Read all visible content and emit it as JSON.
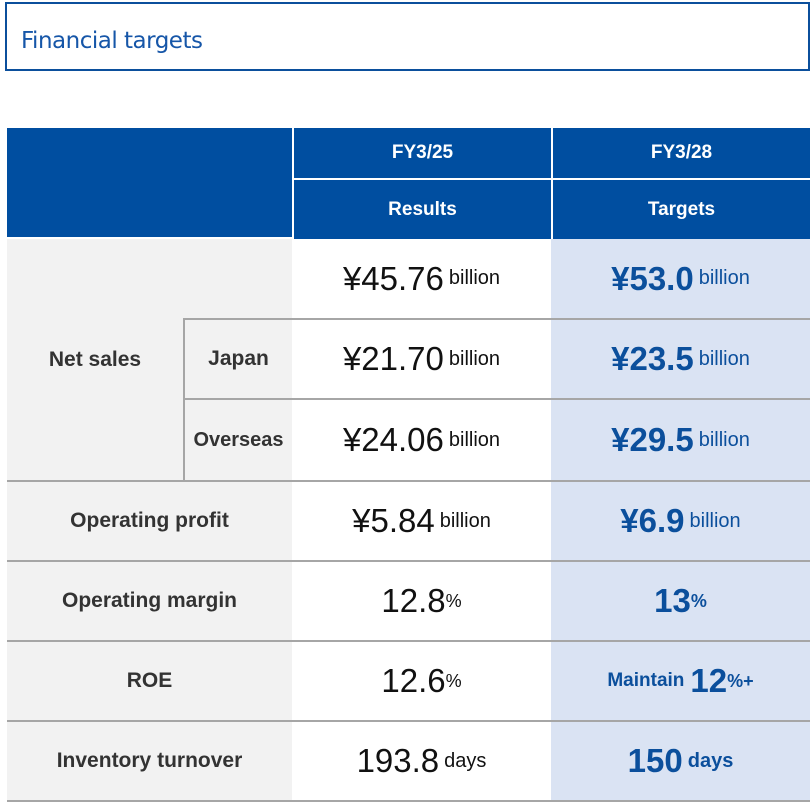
{
  "title": "Financial targets",
  "header": {
    "col1_year": "FY3/25",
    "col1_label": "Results",
    "col2_year": "FY3/28",
    "col2_label": "Targets"
  },
  "rows": [
    {
      "label": "Net sales",
      "sublabel": "",
      "result": "¥45.76",
      "result_unit": "billion",
      "target": "¥53.0",
      "target_unit": "billion"
    },
    {
      "label": "",
      "sublabel": "Japan",
      "result": "¥21.70",
      "result_unit": "billion",
      "target": "¥23.5",
      "target_unit": "billion"
    },
    {
      "label": "",
      "sublabel": "Overseas",
      "result": "¥24.06",
      "result_unit": "billion",
      "target": "¥29.5",
      "target_unit": "billion"
    },
    {
      "label": "Operating profit",
      "result": "¥5.84",
      "result_unit": "billion",
      "target": "¥6.9",
      "target_unit": "billion"
    },
    {
      "label": "Operating margin",
      "result": "12.8",
      "result_unit": "%",
      "target": "13",
      "target_unit": "%"
    },
    {
      "label": "ROE",
      "result": "12.6",
      "result_unit": "%",
      "target_prefix": "Maintain",
      "target": "12",
      "target_unit": "%+"
    },
    {
      "label": "Inventory turnover",
      "result": "193.8",
      "result_unit": "days",
      "target": "150",
      "target_unit": "days"
    }
  ],
  "colors": {
    "header_bg": "#004ea0",
    "target_bg": "#dae3f3",
    "label_bg": "#f2f2f2",
    "accent_text": "#0b4f9c"
  }
}
